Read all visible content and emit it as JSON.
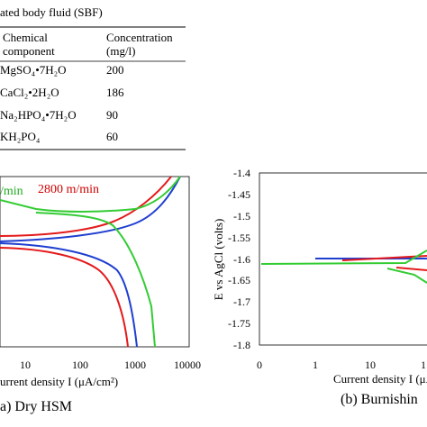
{
  "table": {
    "caption": "ated body fluid (SBF)",
    "header": [
      "Chemical",
      "component",
      "Concentration",
      "(mg/l)"
    ],
    "rows": [
      [
        "MgSO₄•7H₂O",
        "200"
      ],
      [
        "CaCl₂•2H₂O",
        "186"
      ],
      [
        "Na₂HPO₄•7H₂O",
        "90"
      ],
      [
        "KH₂PO₄",
        "60"
      ]
    ]
  },
  "figure_a": {
    "annotations": [
      "2800 m/min",
      "/min"
    ],
    "xticks": [
      "10",
      "100",
      "1000",
      "10000"
    ],
    "xlabel": "urrent density I (μA/cm²)",
    "caption": "a) Dry HSM"
  },
  "figure_b": {
    "yticks": [
      "-1.4",
      "-1.45",
      "-1.5",
      "-1.55",
      "-1.6",
      "-1.65",
      "-1.7",
      "-1.75",
      "-1.8"
    ],
    "ylabel": "E vs AgCl (volts)",
    "xticks": [
      "0",
      "1",
      "10",
      "1"
    ],
    "xlabel": "Current density I (μA/cm²)",
    "caption": "(b) Burnishin"
  }
}
